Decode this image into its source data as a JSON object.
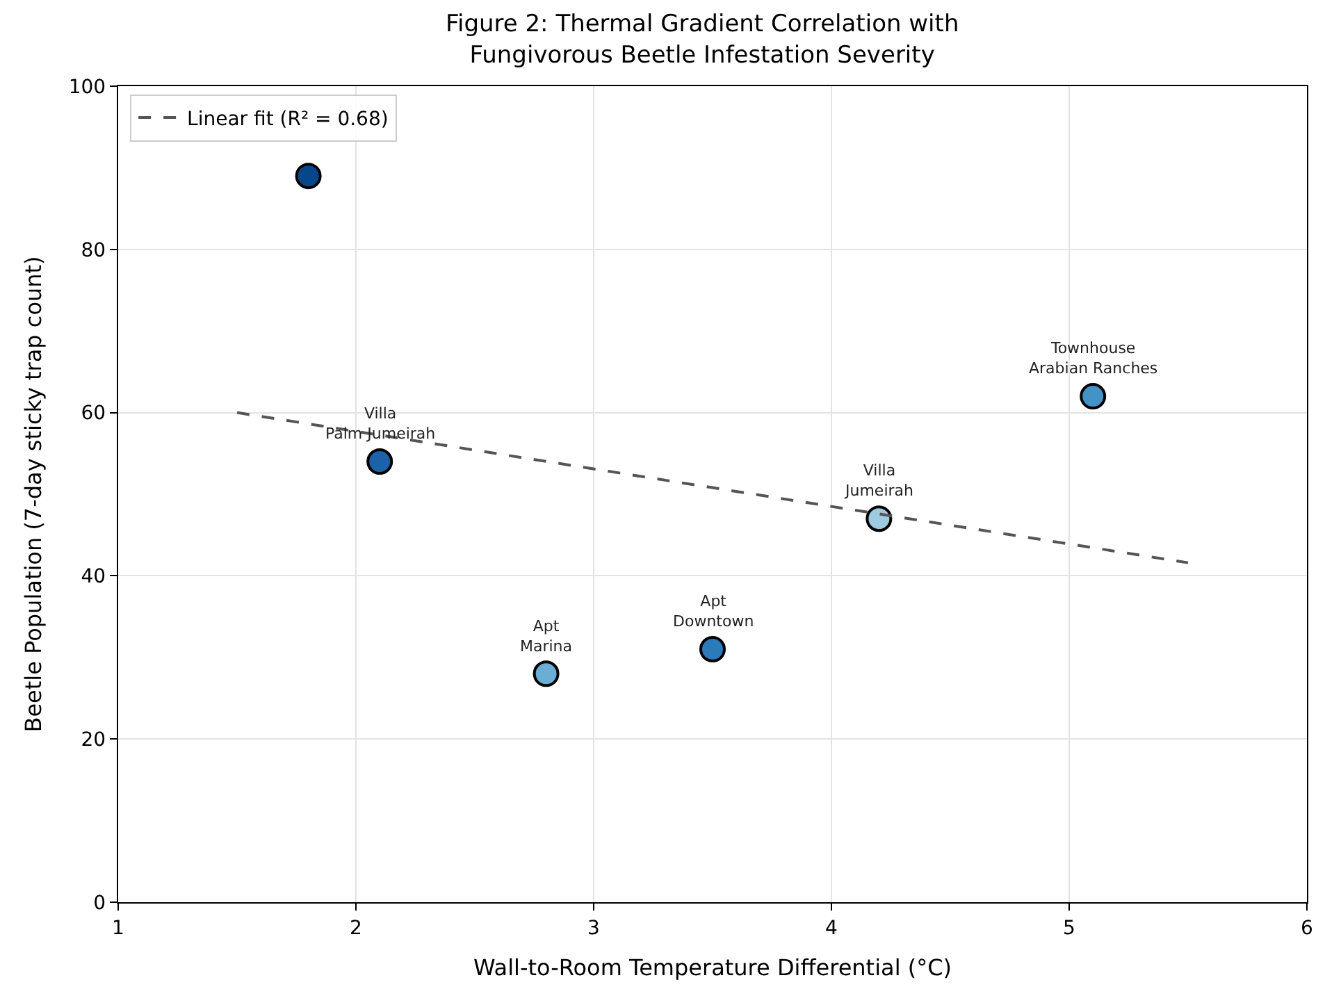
{
  "chart_data": {
    "type": "scatter",
    "title": "Figure 2: Thermal Gradient Correlation with\nFungivorous Beetle Infestation Severity",
    "xlabel": "Wall-to-Room Temperature Differential (°C)",
    "ylabel": "Beetle Population (7-day sticky trap count)",
    "xlim": [
      1,
      6
    ],
    "xticks": [
      1,
      2,
      3,
      4,
      5,
      6
    ],
    "ylim": [
      0,
      100
    ],
    "yticks": [
      0,
      20,
      40,
      60,
      80,
      100
    ],
    "grid": true,
    "legend": "top left",
    "series": [
      {
        "marker": "circle",
        "x": [
          1.8,
          2.1,
          2.8,
          3.5,
          4.2,
          5.1
        ],
        "values": [
          89,
          54,
          28,
          31,
          47,
          62
        ],
        "colors": [
          "#08468c",
          "#1c62a8",
          "#6aaed6",
          "#2b7bba",
          "#9ecae1",
          "#4493c7"
        ]
      },
      {
        "type": "line",
        "name": "Linear fit (R² = 0.68)",
        "color": "#555555",
        "line_style": "dashed",
        "x": [
          1.5,
          5.5
        ],
        "values": [
          60,
          41.6
        ]
      }
    ],
    "annotations": [
      {
        "text": "Villa\nPalm Jumeirah",
        "x": 2.1,
        "y": 54
      },
      {
        "text": "Apt\nMarina",
        "x": 2.8,
        "y": 28
      },
      {
        "text": "Apt\nDowntown",
        "x": 3.5,
        "y": 31
      },
      {
        "text": "Villa\nJumeirah",
        "x": 4.2,
        "y": 47
      },
      {
        "text": "Townhouse\nArabian Ranches",
        "x": 5.1,
        "y": 62
      }
    ]
  }
}
